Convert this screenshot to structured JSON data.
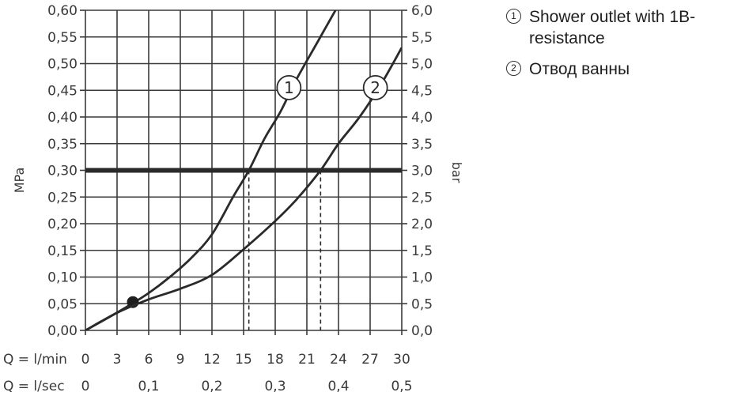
{
  "chart_data": {
    "type": "line",
    "y_left": {
      "label": "MPa",
      "ticks": [
        "0,00",
        "0,05",
        "0,10",
        "0,15",
        "0,20",
        "0,25",
        "0,30",
        "0,35",
        "0,40",
        "0,45",
        "0,50",
        "0,55",
        "0,60"
      ],
      "range": [
        0,
        0.6
      ]
    },
    "y_right": {
      "label": "bar",
      "ticks": [
        "0,0",
        "0,5",
        "1,0",
        "1,5",
        "2,0",
        "2,5",
        "3,0",
        "3,5",
        "4,0",
        "4,5",
        "5,0",
        "5,5",
        "6,0"
      ],
      "range": [
        0,
        6
      ]
    },
    "x_lmin": {
      "prefix": "Q = l/min",
      "ticks": [
        "0",
        "3",
        "6",
        "9",
        "12",
        "15",
        "18",
        "21",
        "24",
        "27",
        "30"
      ],
      "values": [
        0,
        3,
        6,
        9,
        12,
        15,
        18,
        21,
        24,
        27,
        30
      ],
      "range": [
        0,
        30
      ]
    },
    "x_lsec": {
      "prefix": "Q = l/sec",
      "ticks": [
        "0",
        "0,1",
        "0,2",
        "0,3",
        "0,4",
        "0,5"
      ],
      "values": [
        0,
        6,
        12,
        18,
        24,
        30
      ]
    },
    "reference_line": {
      "y": 0.3
    },
    "grid": true,
    "series": [
      {
        "marker": "1",
        "x": [
          0,
          2,
          4,
          6,
          8,
          10,
          12,
          14,
          15.5,
          17,
          18.5,
          20,
          22,
          24
        ],
        "y": [
          0,
          0.022,
          0.045,
          0.07,
          0.1,
          0.135,
          0.18,
          0.25,
          0.3,
          0.36,
          0.41,
          0.47,
          0.54,
          0.61
        ],
        "label_at": [
          19.3,
          0.455
        ],
        "marker_point": [
          4.5,
          0.053
        ]
      },
      {
        "marker": "2",
        "x": [
          0,
          3,
          6,
          9,
          12,
          15,
          18,
          20,
          22.3,
          24,
          26,
          28,
          30
        ],
        "y": [
          0,
          0.033,
          0.058,
          0.078,
          0.104,
          0.152,
          0.205,
          0.245,
          0.3,
          0.35,
          0.4,
          0.46,
          0.53
        ],
        "label_at": [
          27.5,
          0.455
        ]
      }
    ],
    "drop_lines_x": [
      15.5,
      22.3
    ]
  },
  "legend": {
    "items": [
      {
        "num": "1",
        "text": "Shower outlet with 1B-resistance"
      },
      {
        "num": "2",
        "text": "Отвод ванны"
      }
    ]
  }
}
